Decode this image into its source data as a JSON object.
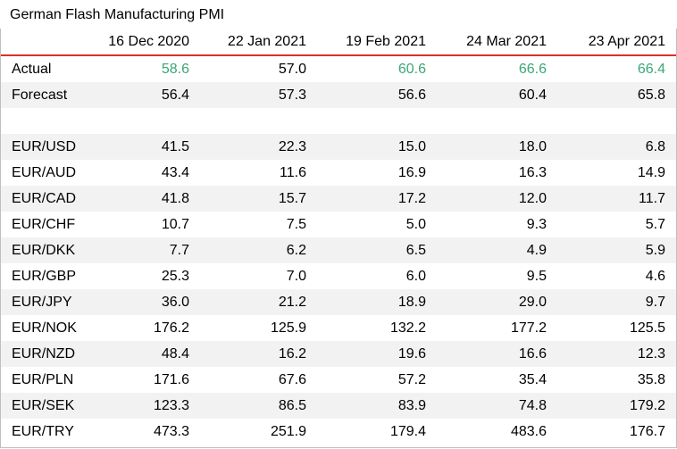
{
  "title": "German Flash Manufacturing PMI",
  "colors": {
    "accent_line": "#d9302a",
    "positive": "#3aa775",
    "stripe": "#f2f2f2"
  },
  "columns": [
    "",
    "16 Dec 2020",
    "22 Jan 2021",
    "19 Feb 2021",
    "24 Mar 2021",
    "23 Apr 2021"
  ],
  "rows": [
    {
      "label": "Actual",
      "values": [
        "58.6",
        "57.0",
        "60.6",
        "66.6",
        "66.4"
      ],
      "highlight": [
        true,
        false,
        true,
        true,
        true
      ]
    },
    {
      "label": "Forecast",
      "values": [
        "56.4",
        "57.3",
        "56.6",
        "60.4",
        "65.8"
      ]
    },
    {
      "label": "",
      "values": [
        "",
        "",
        "",
        "",
        ""
      ]
    },
    {
      "label": "EUR/USD",
      "values": [
        "41.5",
        "22.3",
        "15.0",
        "18.0",
        "6.8"
      ]
    },
    {
      "label": "EUR/AUD",
      "values": [
        "43.4",
        "11.6",
        "16.9",
        "16.3",
        "14.9"
      ]
    },
    {
      "label": "EUR/CAD",
      "values": [
        "41.8",
        "15.7",
        "17.2",
        "12.0",
        "11.7"
      ]
    },
    {
      "label": "EUR/CHF",
      "values": [
        "10.7",
        "7.5",
        "5.0",
        "9.3",
        "5.7"
      ]
    },
    {
      "label": "EUR/DKK",
      "values": [
        "7.7",
        "6.2",
        "6.5",
        "4.9",
        "5.9"
      ]
    },
    {
      "label": "EUR/GBP",
      "values": [
        "25.3",
        "7.0",
        "6.0",
        "9.5",
        "4.6"
      ]
    },
    {
      "label": "EUR/JPY",
      "values": [
        "36.0",
        "21.2",
        "18.9",
        "29.0",
        "9.7"
      ]
    },
    {
      "label": "EUR/NOK",
      "values": [
        "176.2",
        "125.9",
        "132.2",
        "177.2",
        "125.5"
      ]
    },
    {
      "label": "EUR/NZD",
      "values": [
        "48.4",
        "16.2",
        "19.6",
        "16.6",
        "12.3"
      ]
    },
    {
      "label": "EUR/PLN",
      "values": [
        "171.6",
        "67.6",
        "57.2",
        "35.4",
        "35.8"
      ]
    },
    {
      "label": "EUR/SEK",
      "values": [
        "123.3",
        "86.5",
        "83.9",
        "74.8",
        "179.2"
      ]
    },
    {
      "label": "EUR/TRY",
      "values": [
        "473.3",
        "251.9",
        "179.4",
        "483.6",
        "176.7"
      ]
    }
  ]
}
